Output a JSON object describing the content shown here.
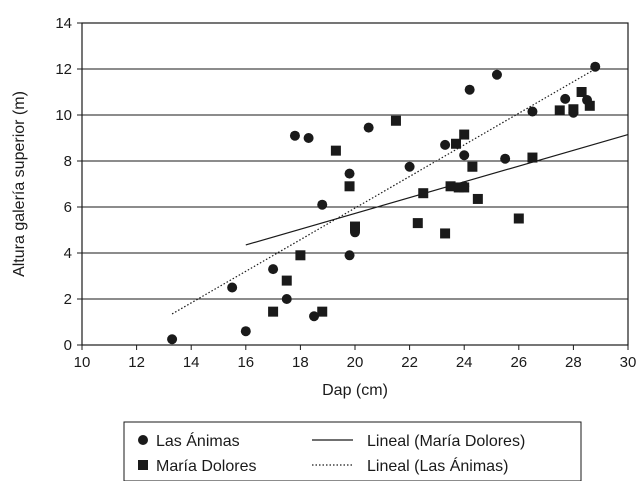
{
  "chart_data": {
    "type": "scatter",
    "title": "",
    "xlabel": "Dap (cm)",
    "ylabel": "Altura galería superior (m)",
    "xlim": [
      10,
      30
    ],
    "ylim": [
      0,
      14
    ],
    "x_ticks": [
      "10",
      "12",
      "14",
      "16",
      "18",
      "20",
      "22",
      "24",
      "26",
      "28",
      "30"
    ],
    "y_ticks": [
      "0",
      "2",
      "4",
      "6",
      "8",
      "10",
      "12",
      "14"
    ],
    "grid": "horizontal",
    "legend_position": "bottom",
    "colors": {
      "ink": "#1a1a1a",
      "background": "#ffffff"
    },
    "series": [
      {
        "name": "Las Ánimas",
        "marker": "circle",
        "points": [
          [
            13.3,
            0.25
          ],
          [
            15.5,
            2.5
          ],
          [
            16.0,
            0.6
          ],
          [
            17.0,
            3.3
          ],
          [
            17.5,
            2.0
          ],
          [
            17.8,
            9.1
          ],
          [
            18.3,
            9.0
          ],
          [
            18.5,
            1.25
          ],
          [
            18.8,
            6.1
          ],
          [
            19.8,
            7.45
          ],
          [
            19.8,
            3.9
          ],
          [
            20.0,
            4.9
          ],
          [
            20.5,
            9.45
          ],
          [
            22.0,
            7.75
          ],
          [
            23.3,
            8.7
          ],
          [
            24.0,
            8.25
          ],
          [
            24.2,
            11.1
          ],
          [
            24.0,
            6.9
          ],
          [
            25.2,
            11.75
          ],
          [
            25.5,
            8.1
          ],
          [
            26.5,
            10.15
          ],
          [
            27.7,
            10.7
          ],
          [
            28.0,
            10.1
          ],
          [
            28.5,
            10.65
          ],
          [
            28.8,
            12.1
          ]
        ]
      },
      {
        "name": "María Dolores",
        "marker": "square",
        "points": [
          [
            17.0,
            1.45
          ],
          [
            17.5,
            2.8
          ],
          [
            18.0,
            3.9
          ],
          [
            18.8,
            1.45
          ],
          [
            19.3,
            8.45
          ],
          [
            19.8,
            6.9
          ],
          [
            20.0,
            5.15
          ],
          [
            21.5,
            9.75
          ],
          [
            22.3,
            5.3
          ],
          [
            22.5,
            6.6
          ],
          [
            23.3,
            4.85
          ],
          [
            23.5,
            6.9
          ],
          [
            23.7,
            8.75
          ],
          [
            23.8,
            6.85
          ],
          [
            24.0,
            6.85
          ],
          [
            24.0,
            9.15
          ],
          [
            24.3,
            7.75
          ],
          [
            24.5,
            6.35
          ],
          [
            26.0,
            5.5
          ],
          [
            26.5,
            8.15
          ],
          [
            27.5,
            10.2
          ],
          [
            28.0,
            10.25
          ],
          [
            28.3,
            11.0
          ],
          [
            28.6,
            10.4
          ]
        ]
      }
    ],
    "trendlines": [
      {
        "name": "Lineal (María Dolores)",
        "style": "solid",
        "x": [
          16.0,
          30.0
        ],
        "y": [
          4.35,
          9.15
        ]
      },
      {
        "name": "Lineal (Las Ánimas)",
        "style": "dotted",
        "x": [
          13.3,
          28.8
        ],
        "y": [
          1.35,
          12.0
        ]
      }
    ],
    "legend": [
      {
        "label": "Las Ánimas",
        "kind": "circle"
      },
      {
        "label": "Lineal (María Dolores)",
        "kind": "solid"
      },
      {
        "label": "María Dolores",
        "kind": "square"
      },
      {
        "label": "Lineal (Las Ánimas)",
        "kind": "dotted"
      }
    ]
  }
}
